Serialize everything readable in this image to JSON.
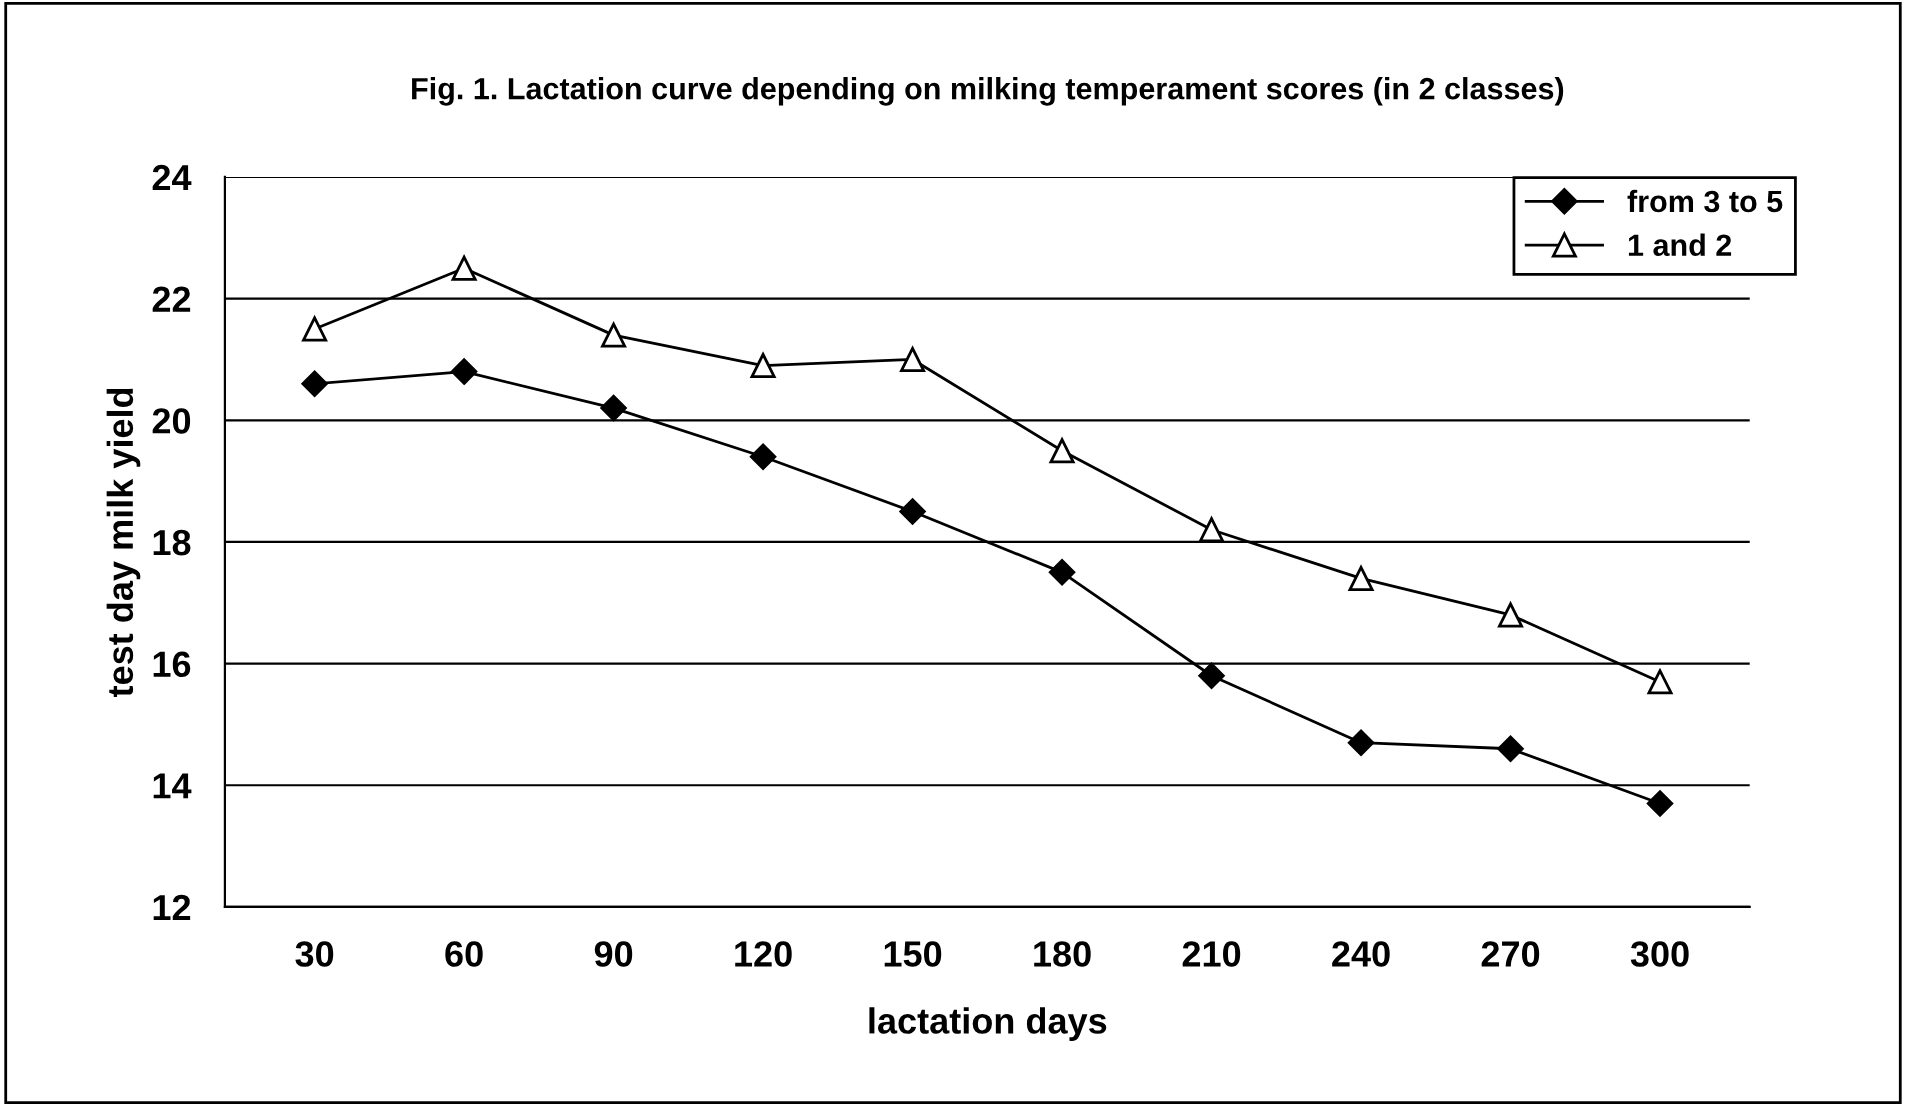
{
  "chart_data": {
    "type": "line",
    "title": "Fig. 1. Lactation curve depending on milking temperament scores (in 2 classes)",
    "xlabel": "lactation days",
    "ylabel": "test day milk yield",
    "categories": [
      "30",
      "60",
      "90",
      "120",
      "150",
      "180",
      "210",
      "240",
      "270",
      "300"
    ],
    "series": [
      {
        "name": "from 3 to 5",
        "color": "#000000",
        "marker": "diamond",
        "values": [
          20.6,
          20.8,
          20.2,
          19.4,
          18.5,
          17.5,
          15.8,
          14.7,
          14.6,
          13.7
        ]
      },
      {
        "name": "1 and 2",
        "color": "#000000",
        "marker": "triangle",
        "values": [
          21.5,
          22.5,
          21.4,
          20.9,
          21.0,
          19.5,
          18.2,
          17.4,
          16.8,
          15.7
        ]
      }
    ],
    "ylim": [
      12,
      24
    ],
    "yticks": [
      12,
      14,
      16,
      18,
      20,
      22,
      24
    ],
    "grid": "y",
    "legend": "top right",
    "line_style": "solid"
  }
}
